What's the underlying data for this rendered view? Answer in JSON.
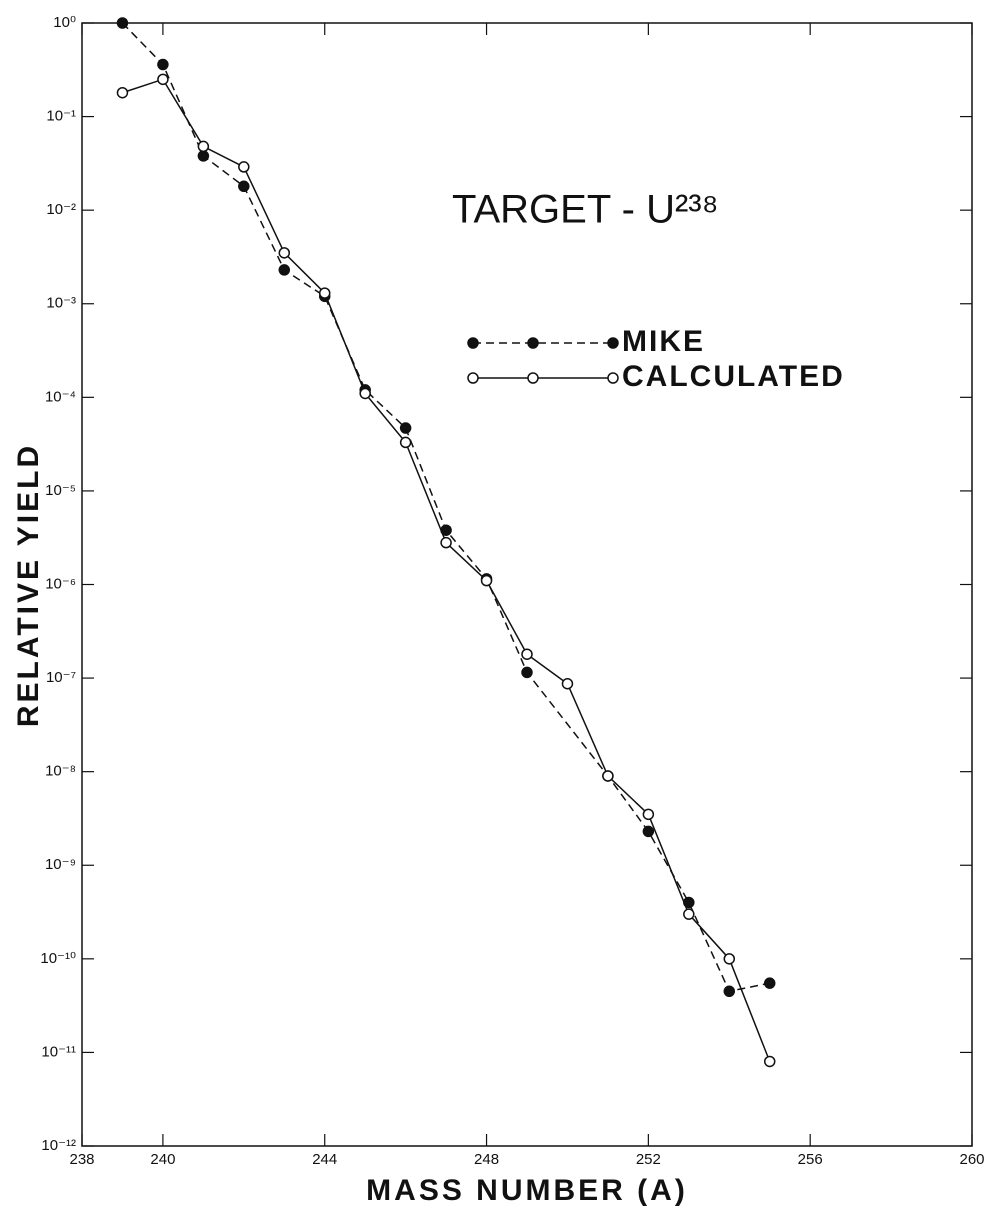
{
  "chart_data": {
    "type": "line",
    "annotation": "TARGET - U²³⁸",
    "xlabel": "MASS NUMBER (A)",
    "ylabel": "RELATIVE YIELD",
    "log_y": true,
    "xlim": [
      238,
      260
    ],
    "xticks": [
      238,
      240,
      244,
      248,
      252,
      256,
      260
    ],
    "ylim": [
      1e-12,
      1
    ],
    "yticks": [
      {
        "value": 1,
        "label": "10⁰"
      },
      {
        "value": 0.1,
        "label": "10⁻¹"
      },
      {
        "value": 0.01,
        "label": "10⁻²"
      },
      {
        "value": 0.001,
        "label": "10⁻³"
      },
      {
        "value": 0.0001,
        "label": "10⁻⁴"
      },
      {
        "value": 1e-05,
        "label": "10⁻⁵"
      },
      {
        "value": 1e-06,
        "label": "10⁻⁶"
      },
      {
        "value": 1e-07,
        "label": "10⁻⁷"
      },
      {
        "value": 1e-08,
        "label": "10⁻⁸"
      },
      {
        "value": 1e-09,
        "label": "10⁻⁹"
      },
      {
        "value": 1e-10,
        "label": "10⁻¹⁰"
      },
      {
        "value": 1e-11,
        "label": "10⁻¹¹"
      },
      {
        "value": 1e-12,
        "label": "10⁻¹²"
      }
    ],
    "series": [
      {
        "name": "MIKE",
        "color": "#111111",
        "marker": "filled",
        "dash": true,
        "x": [
          239,
          240,
          241,
          242,
          243,
          244,
          245,
          246,
          247,
          248,
          249,
          251,
          252,
          253,
          254,
          255
        ],
        "values": [
          1.0,
          0.36,
          0.038,
          0.018,
          0.0023,
          0.0012,
          0.00012,
          4.7e-05,
          3.8e-06,
          1.15e-06,
          1.15e-07,
          9e-09,
          2.3e-09,
          4e-10,
          4.5e-11,
          5.5e-11
        ]
      },
      {
        "name": "CALCULATED",
        "color": "#111111",
        "marker": "open",
        "dash": false,
        "x": [
          239,
          240,
          241,
          242,
          243,
          244,
          245,
          246,
          247,
          248,
          249,
          250,
          251,
          252,
          253,
          254,
          255
        ],
        "values": [
          0.18,
          0.25,
          0.048,
          0.029,
          0.0035,
          0.0013,
          0.00011,
          3.3e-05,
          2.8e-06,
          1.1e-06,
          1.8e-07,
          8.7e-08,
          9e-09,
          3.5e-09,
          3e-10,
          1e-10,
          8e-12
        ]
      }
    ]
  }
}
